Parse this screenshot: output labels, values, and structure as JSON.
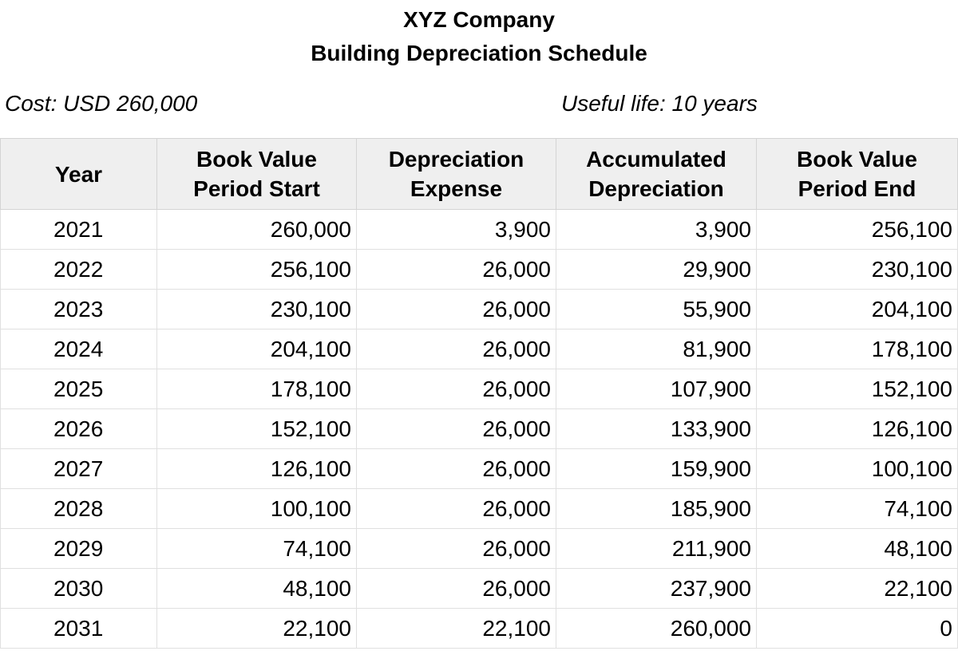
{
  "title": {
    "company": "XYZ Company",
    "subtitle": "Building Depreciation Schedule"
  },
  "meta": {
    "cost": "Cost: USD 260,000",
    "useful_life": "Useful life: 10 years"
  },
  "table": {
    "headers": [
      {
        "line1": "Year",
        "line2": ""
      },
      {
        "line1": "Book Value",
        "line2": "Period Start"
      },
      {
        "line1": "Depreciation",
        "line2": "Expense"
      },
      {
        "line1": "Accumulated",
        "line2": "Depreciation"
      },
      {
        "line1": "Book Value",
        "line2": "Period End"
      }
    ],
    "rows": [
      [
        "2021",
        "260,000",
        "3,900",
        "3,900",
        "256,100"
      ],
      [
        "2022",
        "256,100",
        "26,000",
        "29,900",
        "230,100"
      ],
      [
        "2023",
        "230,100",
        "26,000",
        "55,900",
        "204,100"
      ],
      [
        "2024",
        "204,100",
        "26,000",
        "81,900",
        "178,100"
      ],
      [
        "2025",
        "178,100",
        "26,000",
        "107,900",
        "152,100"
      ],
      [
        "2026",
        "152,100",
        "26,000",
        "133,900",
        "126,100"
      ],
      [
        "2027",
        "126,100",
        "26,000",
        "159,900",
        "100,100"
      ],
      [
        "2028",
        "100,100",
        "26,000",
        "185,900",
        "74,100"
      ],
      [
        "2029",
        "74,100",
        "26,000",
        "211,900",
        "48,100"
      ],
      [
        "2030",
        "48,100",
        "26,000",
        "237,900",
        "22,100"
      ],
      [
        "2031",
        "22,100",
        "22,100",
        "260,000",
        "0"
      ]
    ]
  }
}
